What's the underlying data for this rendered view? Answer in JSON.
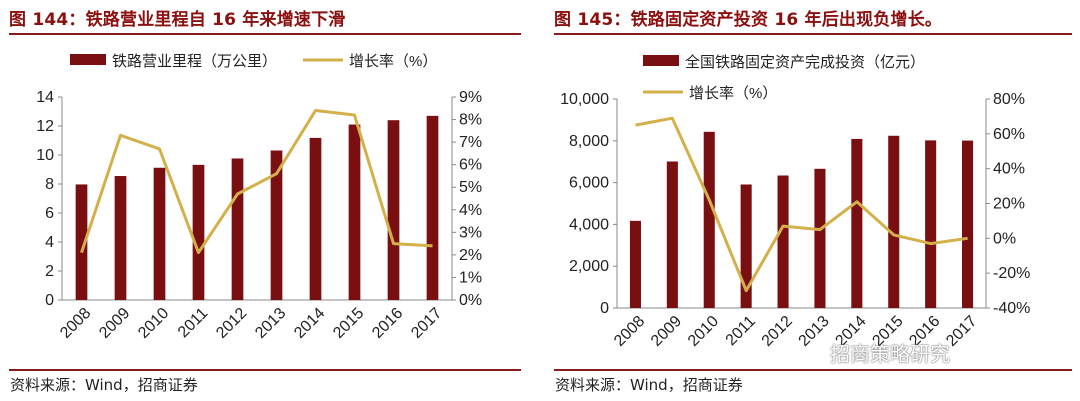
{
  "charts": [
    {
      "title": "图 144：铁路营业里程自 16 年来增速下滑",
      "source": "资料来源：Wind，招商证券",
      "colors": {
        "bar": "#7a0f12",
        "line": "#d4b04a",
        "accent": "#8b1a1a"
      },
      "chart_data": {
        "type": "bar+line",
        "categories": [
          "2008",
          "2009",
          "2010",
          "2011",
          "2012",
          "2013",
          "2014",
          "2015",
          "2016",
          "2017"
        ],
        "series": [
          {
            "name": "铁路营业里程（万公里）",
            "type": "bar",
            "axis": "left",
            "values": [
              7.97,
              8.55,
              9.12,
              9.32,
              9.76,
              10.31,
              11.18,
              12.1,
              12.4,
              12.7
            ]
          },
          {
            "name": "增长率（%）",
            "type": "line",
            "axis": "right",
            "values": [
              2.1,
              7.3,
              6.7,
              2.1,
              4.7,
              5.6,
              8.4,
              8.2,
              2.5,
              2.4
            ]
          }
        ],
        "ylim_left": [
          0,
          14
        ],
        "yticks_left": [
          "0",
          "2",
          "4",
          "6",
          "8",
          "10",
          "12",
          "14"
        ],
        "ylim_right": [
          0,
          9
        ],
        "yticks_right": [
          "0%",
          "1%",
          "2%",
          "3%",
          "4%",
          "5%",
          "6%",
          "7%",
          "8%",
          "9%"
        ],
        "legend_position": "top"
      }
    },
    {
      "title": "图 145：铁路固定资产投资 16 年后出现负增长。",
      "source": "资料来源：Wind，招商证券",
      "watermark": "招商策略研究",
      "colors": {
        "bar": "#7a0f12",
        "line": "#d4b04a",
        "accent": "#8b1a1a"
      },
      "chart_data": {
        "type": "bar+line",
        "categories": [
          "2008",
          "2009",
          "2010",
          "2011",
          "2012",
          "2013",
          "2014",
          "2015",
          "2016",
          "2017"
        ],
        "series": [
          {
            "name": "全国铁路固定资产完成投资（亿元）",
            "type": "bar",
            "axis": "left",
            "values": [
              4170,
              7010,
              8430,
              5910,
              6340,
              6660,
              8090,
              8240,
              8020,
              8010
            ]
          },
          {
            "name": "增长率（%）",
            "type": "line",
            "axis": "right",
            "values": [
              65,
              69,
              22,
              -30,
              7,
              5,
              21,
              2,
              -3,
              0
            ]
          }
        ],
        "ylim_left": [
          0,
          10000
        ],
        "yticks_left": [
          "0",
          "2,000",
          "4,000",
          "6,000",
          "8,000",
          "10,000"
        ],
        "ylim_right": [
          -40,
          80
        ],
        "yticks_right": [
          "-40%",
          "-20%",
          "0%",
          "20%",
          "40%",
          "60%",
          "80%"
        ],
        "legend_position": "top"
      }
    }
  ]
}
